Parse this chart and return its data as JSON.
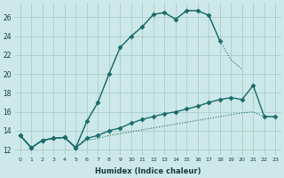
{
  "xlabel": "Humidex (Indice chaleur)",
  "background_color": "#cde8e8",
  "grid_color": "#aacccc",
  "line_color": "#1a6b6b",
  "xlim": [
    -0.5,
    23.5
  ],
  "ylim": [
    11.5,
    27.5
  ],
  "xticks": [
    0,
    1,
    2,
    3,
    4,
    5,
    6,
    7,
    8,
    9,
    10,
    11,
    12,
    13,
    14,
    15,
    16,
    17,
    18,
    19,
    20,
    21,
    22,
    23
  ],
  "yticks": [
    12,
    14,
    16,
    18,
    20,
    22,
    24,
    26
  ],
  "series": [
    {
      "x": [
        0,
        1,
        2,
        3,
        4,
        5,
        6,
        7,
        8,
        9,
        10,
        11,
        12,
        13,
        14,
        15,
        16,
        17,
        18
      ],
      "y": [
        13.5,
        12.2,
        13.0,
        13.2,
        13.3,
        12.2,
        15.0,
        17.0,
        20.0,
        22.8,
        24.0,
        25.0,
        26.3,
        26.5,
        25.8,
        26.7,
        26.7,
        26.2,
        23.5
      ],
      "marker": "D",
      "markersize": 2.5,
      "linewidth": 1.0,
      "linestyle": "-"
    },
    {
      "x": [
        0,
        1,
        2,
        3,
        4,
        5,
        6,
        7,
        8,
        9,
        10,
        11,
        12,
        13,
        14,
        15,
        16,
        17,
        18,
        19,
        20
      ],
      "y": [
        13.5,
        12.2,
        13.0,
        13.2,
        13.3,
        12.2,
        15.0,
        17.0,
        20.0,
        22.8,
        24.0,
        25.0,
        26.3,
        26.5,
        25.8,
        26.7,
        26.7,
        26.2,
        23.5,
        21.5,
        20.5
      ],
      "marker": null,
      "markersize": 0,
      "linewidth": 0.8,
      "linestyle": ":"
    },
    {
      "x": [
        0,
        1,
        2,
        3,
        4,
        5,
        6,
        7,
        8,
        9,
        10,
        11,
        12,
        13,
        14,
        15,
        16,
        17,
        18,
        19,
        20,
        21,
        22,
        23
      ],
      "y": [
        13.5,
        12.2,
        13.0,
        13.2,
        13.3,
        12.2,
        13.2,
        13.5,
        14.0,
        14.3,
        14.8,
        15.2,
        15.5,
        15.8,
        16.0,
        16.3,
        16.6,
        17.0,
        17.3,
        17.5,
        17.3,
        18.8,
        15.5,
        15.5
      ],
      "marker": "D",
      "markersize": 2.5,
      "linewidth": 1.0,
      "linestyle": "-"
    },
    {
      "x": [
        0,
        1,
        2,
        3,
        4,
        5,
        6,
        7,
        8,
        9,
        10,
        11,
        12,
        13,
        14,
        15,
        16,
        17,
        18,
        19,
        20,
        21,
        22,
        23
      ],
      "y": [
        13.5,
        12.2,
        13.0,
        13.2,
        13.3,
        12.2,
        13.0,
        13.2,
        13.5,
        13.7,
        13.9,
        14.1,
        14.3,
        14.5,
        14.7,
        14.9,
        15.1,
        15.3,
        15.5,
        15.7,
        15.9,
        16.0,
        15.5,
        15.5
      ],
      "marker": null,
      "markersize": 0,
      "linewidth": 0.8,
      "linestyle": ":"
    }
  ]
}
